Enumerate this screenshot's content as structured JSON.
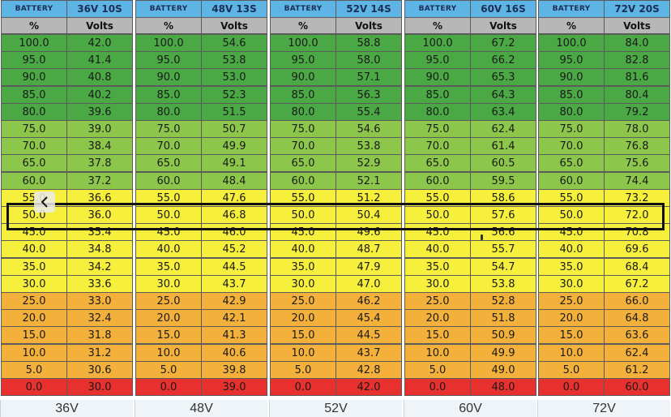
{
  "header": {
    "battery_label": "BATTERY",
    "percent_label": "%",
    "volts_label": "Volts"
  },
  "colors": {
    "header_blue": "#5fb4e6",
    "subheader_gray": "#b7b7b7",
    "highlight_border": "#111111"
  },
  "icons": {
    "back": "chevron-left-icon"
  },
  "rows": [
    {
      "pct": "100.0",
      "color": "#4aa845"
    },
    {
      "pct": "95.0",
      "color": "#4aa845"
    },
    {
      "pct": "90.0",
      "color": "#4aa845"
    },
    {
      "pct": "85.0",
      "color": "#4aa845"
    },
    {
      "pct": "80.0",
      "color": "#4aa845"
    },
    {
      "pct": "75.0",
      "color": "#8cc74b"
    },
    {
      "pct": "70.0",
      "color": "#8cc74b"
    },
    {
      "pct": "65.0",
      "color": "#8cc74b"
    },
    {
      "pct": "60.0",
      "color": "#8cc74b"
    },
    {
      "pct": "55.0",
      "color": "#f6ef3c"
    },
    {
      "pct": "50.0",
      "color": "#f6ef3c"
    },
    {
      "pct": "45.0",
      "color": "#f6ef3c"
    },
    {
      "pct": "40.0",
      "color": "#f6ef3c"
    },
    {
      "pct": "35.0",
      "color": "#f6ef3c"
    },
    {
      "pct": "30.0",
      "color": "#f6ef3c"
    },
    {
      "pct": "25.0",
      "color": "#f3b13c"
    },
    {
      "pct": "20.0",
      "color": "#f3b13c"
    },
    {
      "pct": "15.0",
      "color": "#f3b13c"
    },
    {
      "pct": "10.0",
      "color": "#f3b13c"
    },
    {
      "pct": "5.0",
      "color": "#f3b13c"
    },
    {
      "pct": "0.0",
      "color": "#e8312f"
    }
  ],
  "highlight_row_pct": "50.0",
  "tables": [
    {
      "title": "36V 10S",
      "footer": "36V",
      "volts": [
        "42.0",
        "41.4",
        "40.8",
        "40.2",
        "39.6",
        "39.0",
        "38.4",
        "37.8",
        "37.2",
        "36.6",
        "36.0",
        "35.4",
        "34.8",
        "34.2",
        "33.6",
        "33.0",
        "32.4",
        "31.8",
        "31.2",
        "30.6",
        "30.0"
      ]
    },
    {
      "title": "48V 13S",
      "footer": "48V",
      "volts": [
        "54.6",
        "53.8",
        "53.0",
        "52.3",
        "51.5",
        "50.7",
        "49.9",
        "49.1",
        "48.4",
        "47.6",
        "46.8",
        "46.0",
        "45.2",
        "44.5",
        "43.7",
        "42.9",
        "42.1",
        "41.3",
        "40.6",
        "39.8",
        "39.0"
      ]
    },
    {
      "title": "52V 14S",
      "footer": "52V",
      "volts": [
        "58.8",
        "58.0",
        "57.1",
        "56.3",
        "55.4",
        "54.6",
        "53.8",
        "52.9",
        "52.1",
        "51.2",
        "50.4",
        "49.6",
        "48.7",
        "47.9",
        "47.0",
        "46.2",
        "45.4",
        "44.5",
        "43.7",
        "42.8",
        "42.0"
      ]
    },
    {
      "title": "60V 16S",
      "footer": "60V",
      "volts": [
        "67.2",
        "66.2",
        "65.3",
        "64.3",
        "63.4",
        "62.4",
        "61.4",
        "60.5",
        "59.5",
        "58.6",
        "57.6",
        "56.6",
        "55.7",
        "54.7",
        "53.8",
        "52.8",
        "51.8",
        "50.9",
        "49.9",
        "49.0",
        "48.0"
      ]
    },
    {
      "title": "72V 20S",
      "footer": "72V",
      "volts": [
        "84.0",
        "82.8",
        "81.6",
        "80.4",
        "79.2",
        "78.0",
        "76.8",
        "75.6",
        "74.4",
        "73.2",
        "72.0",
        "70.8",
        "69.6",
        "68.4",
        "67.2",
        "66.0",
        "64.8",
        "63.6",
        "62.4",
        "61.2",
        "60.0"
      ]
    }
  ]
}
